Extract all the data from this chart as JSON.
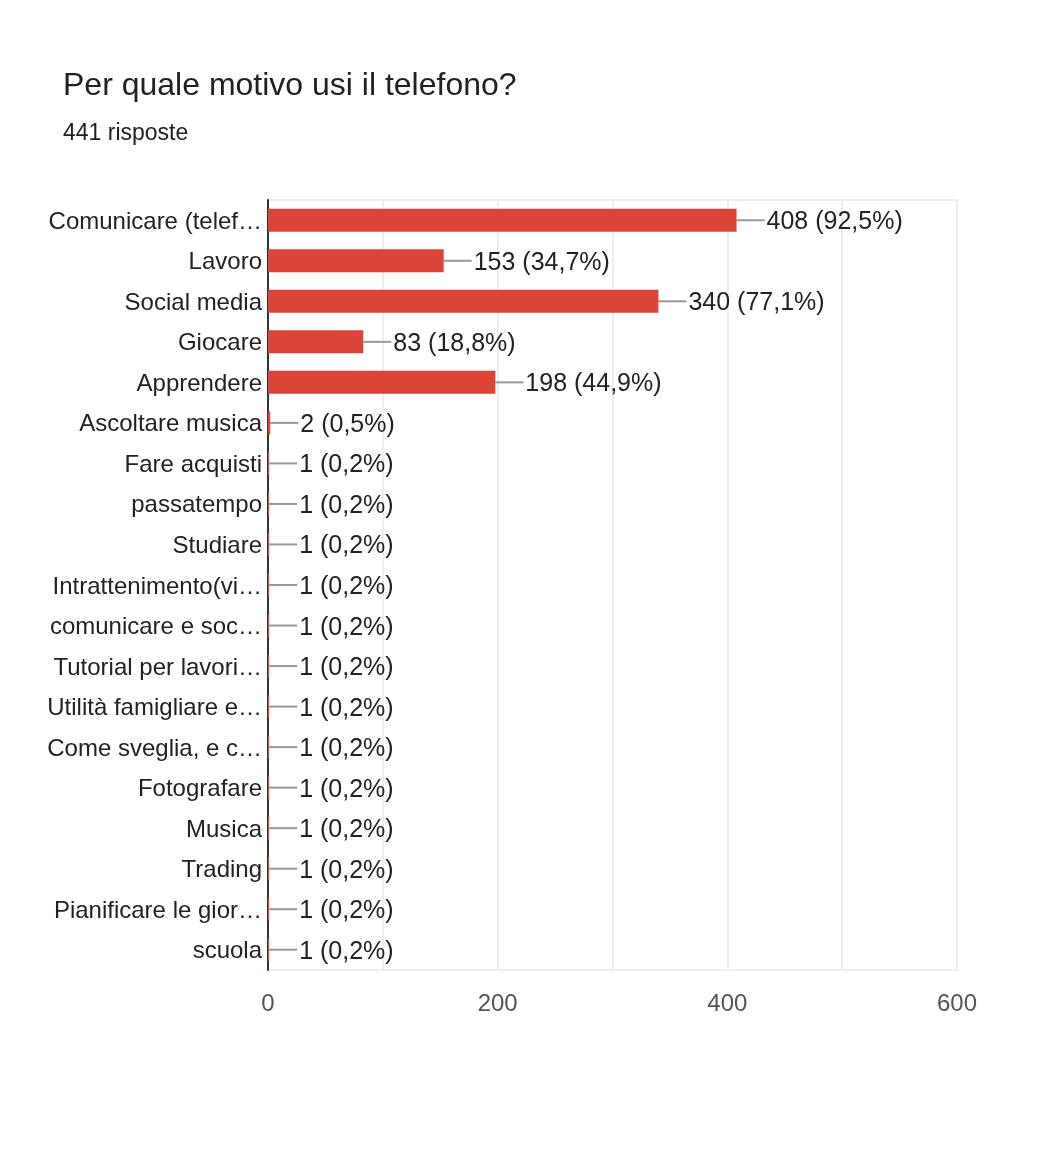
{
  "chart_data": {
    "type": "bar",
    "orientation": "horizontal",
    "title": "Per quale motivo usi il telefono?",
    "subtitle": "441 risposte",
    "categories": [
      "Comunicare (telef…",
      "Lavoro",
      "Social media",
      "Giocare",
      "Apprendere",
      "Ascoltare musica",
      "Fare acquisti",
      "passatempo",
      "Studiare",
      "Intrattenimento(vi…",
      "comunicare e soc…",
      "Tutorial per lavori…",
      "Utilità famigliare e…",
      "Come sveglia, e c…",
      "Fotografare",
      "Musica",
      "Trading",
      "Pianificare le gior…",
      "scuola"
    ],
    "values": [
      408,
      153,
      340,
      83,
      198,
      2,
      1,
      1,
      1,
      1,
      1,
      1,
      1,
      1,
      1,
      1,
      1,
      1,
      1
    ],
    "value_labels": [
      "408 (92,5%)",
      "153 (34,7%)",
      "340 (77,1%)",
      "83 (18,8%)",
      "198 (44,9%)",
      "2 (0,5%)",
      "1 (0,2%)",
      "1 (0,2%)",
      "1 (0,2%)",
      "1 (0,2%)",
      "1 (0,2%)",
      "1 (0,2%)",
      "1 (0,2%)",
      "1 (0,2%)",
      "1 (0,2%)",
      "1 (0,2%)",
      "1 (0,2%)",
      "1 (0,2%)",
      "1 (0,2%)"
    ],
    "color": "#db4437",
    "xlim": [
      0,
      600
    ],
    "xticks": [
      0,
      {
        "value": 100,
        "label": null
      },
      200,
      {
        "value": 300,
        "label": null
      },
      400,
      {
        "value": 500,
        "label": null
      },
      600
    ],
    "grid": "x"
  }
}
